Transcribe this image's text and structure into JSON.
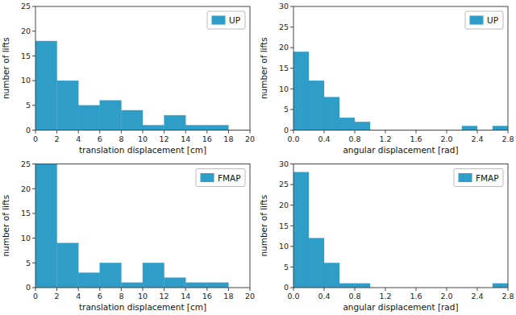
{
  "chart_data": [
    {
      "type": "histogram",
      "xlabel": "translation displacement [cm]",
      "ylabel": "number of lifts",
      "bins": [
        0,
        2,
        4,
        6,
        8,
        10,
        12,
        14,
        16,
        18,
        20
      ],
      "series": [
        {
          "name": "UP",
          "color": "#2E9DC8",
          "values": [
            18,
            10,
            5,
            6,
            4,
            1,
            3,
            1,
            1,
            0
          ]
        }
      ],
      "xlim": [
        0,
        20
      ],
      "ylim": [
        0,
        25
      ],
      "xticks": [
        0,
        2,
        4,
        6,
        8,
        10,
        12,
        14,
        16,
        18,
        20
      ],
      "yticks": [
        0,
        5,
        10,
        15,
        20,
        25
      ],
      "legend": "upper right"
    },
    {
      "type": "histogram",
      "xlabel": "angular displacement [rad]",
      "ylabel": "number of lifts",
      "bins": [
        0.0,
        0.2,
        0.4,
        0.6,
        0.8,
        1.0,
        1.2,
        1.4,
        1.6,
        1.8,
        2.0,
        2.2,
        2.4,
        2.6,
        2.8
      ],
      "series": [
        {
          "name": "UP",
          "color": "#2E9DC8",
          "values": [
            19,
            12,
            8,
            3,
            2,
            0,
            0,
            0,
            0,
            0,
            0,
            1,
            0,
            1
          ]
        }
      ],
      "xlim": [
        0.0,
        2.8
      ],
      "ylim": [
        0,
        30
      ],
      "xticks": [
        {
          "value": 0.0,
          "label": "0.0"
        },
        0.4,
        0.8,
        1.2,
        1.6,
        {
          "value": 2.0,
          "label": "2.0"
        },
        2.4,
        2.8
      ],
      "yticks": [
        0,
        5,
        10,
        15,
        20,
        25,
        30
      ],
      "legend": "upper right"
    },
    {
      "type": "histogram",
      "xlabel": "translation displacement [cm]",
      "ylabel": "number of lifts",
      "bins": [
        0,
        2,
        4,
        6,
        8,
        10,
        12,
        14,
        16,
        18,
        20
      ],
      "series": [
        {
          "name": "FMAP",
          "color": "#2E9DC8",
          "values": [
            25,
            9,
            3,
            5,
            1,
            5,
            2,
            1,
            1,
            0
          ]
        }
      ],
      "xlim": [
        0,
        20
      ],
      "ylim": [
        0,
        25
      ],
      "xticks": [
        0,
        2,
        4,
        6,
        8,
        10,
        12,
        14,
        16,
        18,
        20
      ],
      "yticks": [
        0,
        5,
        10,
        15,
        20,
        25
      ],
      "legend": "upper right"
    },
    {
      "type": "histogram",
      "xlabel": "angular displacement [rad]",
      "ylabel": "number of lifts",
      "bins": [
        0.0,
        0.2,
        0.4,
        0.6,
        0.8,
        1.0,
        1.2,
        1.4,
        1.6,
        1.8,
        2.0,
        2.2,
        2.4,
        2.6,
        2.8
      ],
      "series": [
        {
          "name": "FMAP",
          "color": "#2E9DC8",
          "values": [
            28,
            12,
            6,
            1,
            1,
            0,
            0,
            0,
            0,
            0,
            0,
            0,
            0,
            1
          ]
        }
      ],
      "xlim": [
        0.0,
        2.8
      ],
      "ylim": [
        0,
        30
      ],
      "xticks": [
        {
          "value": 0.0,
          "label": "0.0"
        },
        0.4,
        0.8,
        1.2,
        1.6,
        {
          "value": 2.0,
          "label": "2.0"
        },
        2.4,
        2.8
      ],
      "yticks": [
        0,
        5,
        10,
        15,
        20,
        25,
        30
      ],
      "legend": "upper right"
    }
  ]
}
